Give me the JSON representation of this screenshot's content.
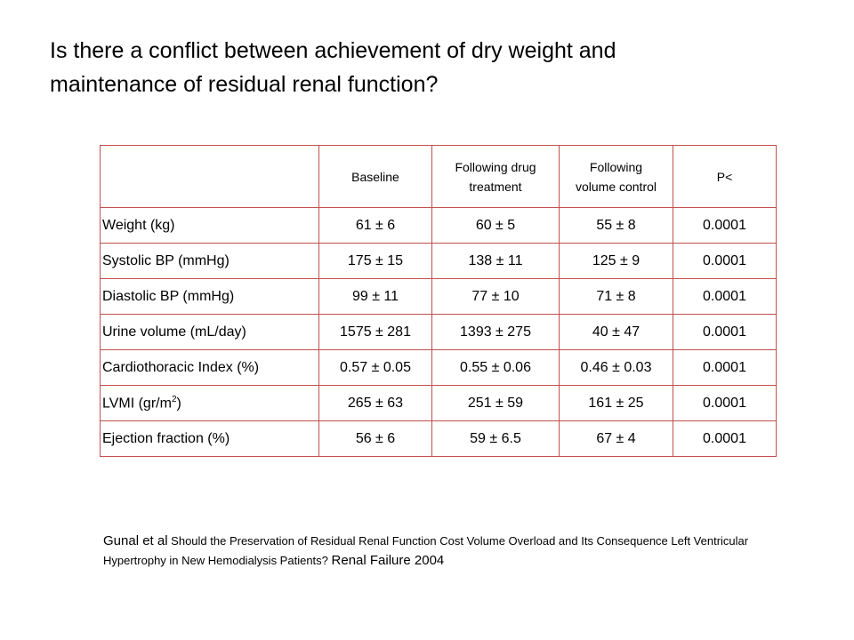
{
  "title": {
    "line1": "Is there a conflict between achievement of dry weight and",
    "line2": "maintenance of residual renal function?"
  },
  "table": {
    "headers": [
      {
        "lines": [
          ""
        ]
      },
      {
        "lines": [
          "Baseline"
        ]
      },
      {
        "lines": [
          "Following drug",
          "treatment"
        ]
      },
      {
        "lines": [
          "Following",
          "volume control"
        ]
      },
      {
        "lines": [
          "P<"
        ]
      }
    ],
    "rows": [
      {
        "label": "Weight (kg)",
        "baseline": "61 ± 6",
        "drug": "60 ± 5",
        "volume": "55 ± 8",
        "p": "0.0001"
      },
      {
        "label": "Systolic BP (mmHg)",
        "baseline": "175 ± 15",
        "drug": "138 ± 11",
        "volume": "125 ± 9",
        "p": "0.0001"
      },
      {
        "label": "Diastolic BP (mmHg)",
        "baseline": "99 ± 11",
        "drug": "77 ± 10",
        "volume": "71 ± 8",
        "p": "0.0001"
      },
      {
        "label": "Urine volume (mL/day)",
        "baseline": "1575 ± 281",
        "drug": "1393 ± 275",
        "volume": "40 ± 47",
        "p": "0.0001"
      },
      {
        "label": "Cardiothoracic Index (%)",
        "baseline": "0.57 ± 0.05",
        "drug": "0.55 ± 0.06",
        "volume": "0.46 ± 0.03",
        "p": "0.0001"
      },
      {
        "label": "LVMI (gr/m",
        "label_sup": "2",
        "label_tail": ")",
        "baseline": "265 ± 63",
        "drug": "251 ± 59",
        "volume": "161 ± 25",
        "p": "0.0001"
      },
      {
        "label": "Ejection fraction (%)",
        "baseline": "56 ± 6",
        "drug": "59 ± 6.5",
        "volume": "67 ± 4",
        "p": "0.0001"
      }
    ]
  },
  "citation": {
    "authors": "Gunal et al",
    "title": "Should the Preservation of Residual Renal Function Cost Volume Overload and Its Consequence Left Ventricular Hypertrophy in New Hemodialysis Patients?",
    "journal": "Renal Failure 2004"
  },
  "colors": {
    "table_border": "#c0504d"
  }
}
